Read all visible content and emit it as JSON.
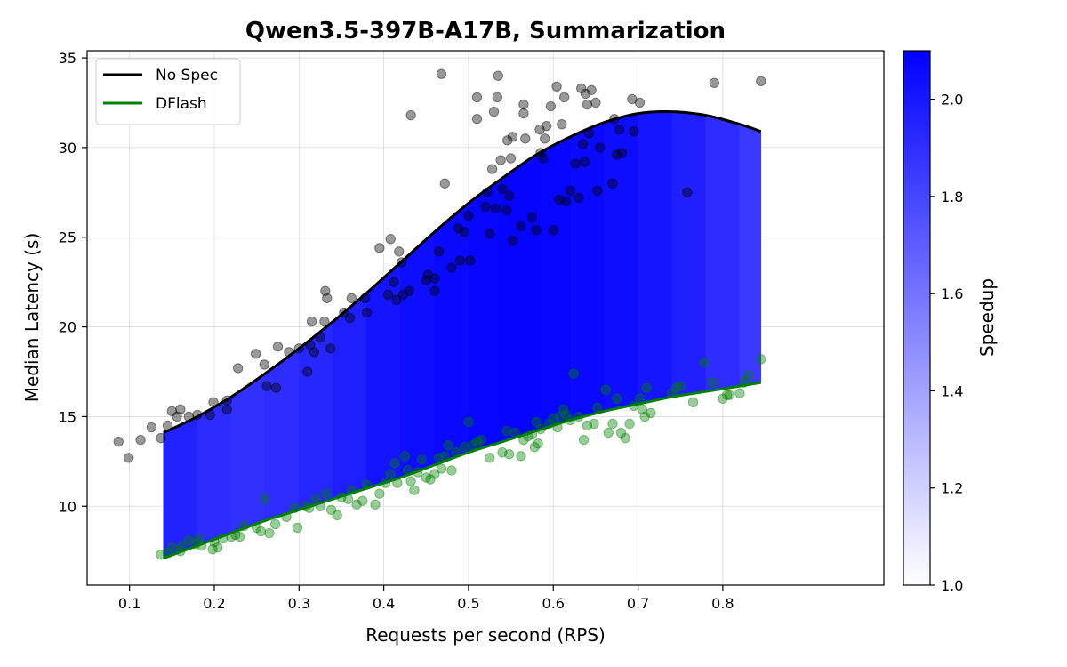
{
  "chart_data": {
    "type": "scatter",
    "title": "Qwen3.5-397B-A17B, Summarization",
    "xlabel": "Requests per second (RPS)",
    "ylabel": "Median Latency (s)",
    "xlim": [
      0.05,
      0.99
    ],
    "ylim": [
      5.6,
      35.4
    ],
    "xticks": [
      0.1,
      0.2,
      0.3,
      0.4,
      0.5,
      0.6,
      0.7,
      0.8
    ],
    "xtick_labels": [
      "0.1",
      "0.2",
      "0.3",
      "0.4",
      "0.5",
      "0.6",
      "0.7",
      "0.8"
    ],
    "yticks": [
      10,
      15,
      20,
      25,
      30,
      35
    ],
    "ytick_labels": [
      "10",
      "15",
      "20",
      "25",
      "30",
      "35"
    ],
    "grid": true,
    "legend_position": "top-left",
    "fill_color": "#0000ff",
    "colorbar": {
      "label": "Speedup",
      "range": [
        1.0,
        2.1
      ],
      "ticks": [
        1.0,
        1.2,
        1.4,
        1.6,
        1.8,
        2.0
      ],
      "tick_labels": [
        "1.0",
        "1.2",
        "1.4",
        "1.6",
        "1.8",
        "2.0"
      ],
      "color_min": "#ffffff",
      "color_max": "#0000ff"
    },
    "series": [
      {
        "name": "No Spec",
        "kind": "fit_line",
        "color": "#000000",
        "x": [
          0.14,
          0.18,
          0.22,
          0.26,
          0.3,
          0.34,
          0.38,
          0.42,
          0.46,
          0.5,
          0.54,
          0.58,
          0.62,
          0.66,
          0.7,
          0.74,
          0.78,
          0.82,
          0.845
        ],
        "y": [
          14.1,
          15.0,
          16.1,
          17.4,
          18.8,
          20.3,
          21.9,
          23.6,
          25.3,
          26.9,
          28.3,
          29.6,
          30.6,
          31.4,
          31.9,
          32.0,
          31.8,
          31.3,
          30.9
        ]
      },
      {
        "name": "DFlash",
        "kind": "fit_line",
        "color": "#008000",
        "x": [
          0.14,
          0.18,
          0.22,
          0.26,
          0.3,
          0.34,
          0.38,
          0.42,
          0.46,
          0.5,
          0.54,
          0.58,
          0.62,
          0.66,
          0.7,
          0.74,
          0.78,
          0.82,
          0.845
        ],
        "y": [
          7.1,
          7.8,
          8.5,
          9.2,
          9.8,
          10.4,
          11.0,
          11.6,
          12.3,
          13.0,
          13.6,
          14.2,
          14.8,
          15.3,
          15.7,
          16.1,
          16.4,
          16.7,
          16.9
        ]
      },
      {
        "kind": "scatter",
        "color": "#000000",
        "opacity": 0.4,
        "points": [
          [
            0.087,
            13.6
          ],
          [
            0.099,
            12.7
          ],
          [
            0.113,
            13.7
          ],
          [
            0.126,
            14.4
          ],
          [
            0.137,
            13.8
          ],
          [
            0.145,
            14.5
          ],
          [
            0.15,
            15.3
          ],
          [
            0.156,
            15.0
          ],
          [
            0.16,
            15.4
          ],
          [
            0.17,
            15.0
          ],
          [
            0.18,
            15.1
          ],
          [
            0.195,
            15.1
          ],
          [
            0.199,
            15.8
          ],
          [
            0.215,
            15.9
          ],
          [
            0.215,
            15.4
          ],
          [
            0.228,
            17.7
          ],
          [
            0.249,
            18.5
          ],
          [
            0.259,
            17.9
          ],
          [
            0.262,
            16.7
          ],
          [
            0.273,
            16.6
          ],
          [
            0.275,
            18.9
          ],
          [
            0.288,
            18.6
          ],
          [
            0.3,
            18.8
          ],
          [
            0.31,
            17.5
          ],
          [
            0.313,
            19.0
          ],
          [
            0.315,
            20.3
          ],
          [
            0.318,
            18.6
          ],
          [
            0.325,
            19.4
          ],
          [
            0.33,
            20.3
          ],
          [
            0.331,
            22.0
          ],
          [
            0.333,
            21.6
          ],
          [
            0.337,
            18.8
          ],
          [
            0.353,
            20.8
          ],
          [
            0.36,
            20.5
          ],
          [
            0.362,
            21.6
          ],
          [
            0.378,
            21.6
          ],
          [
            0.38,
            20.8
          ],
          [
            0.395,
            24.4
          ],
          [
            0.405,
            21.8
          ],
          [
            0.408,
            24.9
          ],
          [
            0.412,
            22.5
          ],
          [
            0.415,
            21.5
          ],
          [
            0.418,
            24.2
          ],
          [
            0.421,
            23.6
          ],
          [
            0.423,
            21.8
          ],
          [
            0.43,
            22.0
          ],
          [
            0.432,
            31.8
          ],
          [
            0.45,
            22.6
          ],
          [
            0.452,
            22.9
          ],
          [
            0.46,
            22.0
          ],
          [
            0.46,
            22.7
          ],
          [
            0.465,
            24.2
          ],
          [
            0.468,
            34.1
          ],
          [
            0.472,
            28.0
          ],
          [
            0.48,
            23.3
          ],
          [
            0.488,
            25.5
          ],
          [
            0.49,
            23.7
          ],
          [
            0.495,
            25.3
          ],
          [
            0.5,
            26.2
          ],
          [
            0.502,
            23.7
          ],
          [
            0.51,
            32.8
          ],
          [
            0.51,
            31.6
          ],
          [
            0.52,
            26.7
          ],
          [
            0.522,
            27.5
          ],
          [
            0.525,
            25.2
          ],
          [
            0.528,
            28.8
          ],
          [
            0.53,
            32.0
          ],
          [
            0.532,
            26.6
          ],
          [
            0.534,
            32.8
          ],
          [
            0.535,
            34.0
          ],
          [
            0.538,
            29.3
          ],
          [
            0.54,
            27.7
          ],
          [
            0.545,
            26.5
          ],
          [
            0.546,
            30.4
          ],
          [
            0.548,
            27.3
          ],
          [
            0.55,
            29.4
          ],
          [
            0.552,
            30.6
          ],
          [
            0.552,
            24.8
          ],
          [
            0.562,
            25.6
          ],
          [
            0.565,
            32.4
          ],
          [
            0.565,
            31.9
          ],
          [
            0.567,
            30.5
          ],
          [
            0.575,
            26.1
          ],
          [
            0.58,
            25.4
          ],
          [
            0.584,
            31.0
          ],
          [
            0.585,
            29.7
          ],
          [
            0.588,
            29.4
          ],
          [
            0.59,
            30.5
          ],
          [
            0.592,
            31.2
          ],
          [
            0.597,
            32.3
          ],
          [
            0.6,
            25.4
          ],
          [
            0.604,
            33.4
          ],
          [
            0.607,
            27.1
          ],
          [
            0.61,
            31.3
          ],
          [
            0.613,
            32.8
          ],
          [
            0.615,
            27.0
          ],
          [
            0.62,
            27.6
          ],
          [
            0.626,
            29.1
          ],
          [
            0.63,
            27.2
          ],
          [
            0.633,
            33.3
          ],
          [
            0.635,
            30.2
          ],
          [
            0.637,
            29.2
          ],
          [
            0.638,
            33.0
          ],
          [
            0.64,
            32.4
          ],
          [
            0.642,
            30.8
          ],
          [
            0.645,
            33.2
          ],
          [
            0.65,
            32.5
          ],
          [
            0.652,
            27.6
          ],
          [
            0.655,
            30.0
          ],
          [
            0.67,
            28.0
          ],
          [
            0.672,
            31.6
          ],
          [
            0.675,
            29.6
          ],
          [
            0.678,
            31.0
          ],
          [
            0.681,
            29.7
          ],
          [
            0.693,
            32.7
          ],
          [
            0.695,
            30.9
          ],
          [
            0.702,
            32.5
          ],
          [
            0.758,
            27.5
          ],
          [
            0.79,
            33.6
          ],
          [
            0.845,
            33.7
          ]
        ]
      },
      {
        "kind": "scatter",
        "color": "#008000",
        "opacity": 0.4,
        "points": [
          [
            0.137,
            7.3
          ],
          [
            0.145,
            7.4
          ],
          [
            0.15,
            7.7
          ],
          [
            0.16,
            7.5
          ],
          [
            0.162,
            7.8
          ],
          [
            0.17,
            8.1
          ],
          [
            0.178,
            7.9
          ],
          [
            0.182,
            8.2
          ],
          [
            0.185,
            7.8
          ],
          [
            0.198,
            7.6
          ],
          [
            0.2,
            8.0
          ],
          [
            0.204,
            7.7
          ],
          [
            0.21,
            8.2
          ],
          [
            0.22,
            8.3
          ],
          [
            0.225,
            8.4
          ],
          [
            0.23,
            8.3
          ],
          [
            0.235,
            8.9
          ],
          [
            0.25,
            8.8
          ],
          [
            0.255,
            8.6
          ],
          [
            0.26,
            10.4
          ],
          [
            0.265,
            8.5
          ],
          [
            0.272,
            9.0
          ],
          [
            0.285,
            9.4
          ],
          [
            0.295,
            9.9
          ],
          [
            0.298,
            8.8
          ],
          [
            0.308,
            10.0
          ],
          [
            0.312,
            9.9
          ],
          [
            0.32,
            10.4
          ],
          [
            0.325,
            10.0
          ],
          [
            0.332,
            10.7
          ],
          [
            0.338,
            9.8
          ],
          [
            0.345,
            9.5
          ],
          [
            0.35,
            10.5
          ],
          [
            0.358,
            10.4
          ],
          [
            0.362,
            10.9
          ],
          [
            0.368,
            10.1
          ],
          [
            0.375,
            10.3
          ],
          [
            0.38,
            11.2
          ],
          [
            0.39,
            10.1
          ],
          [
            0.395,
            10.7
          ],
          [
            0.402,
            11.3
          ],
          [
            0.408,
            11.8
          ],
          [
            0.413,
            12.4
          ],
          [
            0.416,
            11.3
          ],
          [
            0.425,
            12.8
          ],
          [
            0.428,
            12.0
          ],
          [
            0.432,
            11.4
          ],
          [
            0.436,
            10.9
          ],
          [
            0.44,
            11.9
          ],
          [
            0.445,
            12.6
          ],
          [
            0.45,
            11.6
          ],
          [
            0.455,
            11.5
          ],
          [
            0.46,
            11.8
          ],
          [
            0.465,
            12.7
          ],
          [
            0.468,
            12.1
          ],
          [
            0.472,
            12.8
          ],
          [
            0.476,
            13.4
          ],
          [
            0.48,
            12.0
          ],
          [
            0.485,
            13.0
          ],
          [
            0.495,
            13.3
          ],
          [
            0.5,
            14.7
          ],
          [
            0.505,
            13.4
          ],
          [
            0.51,
            13.6
          ],
          [
            0.515,
            13.7
          ],
          [
            0.525,
            12.7
          ],
          [
            0.54,
            13.0
          ],
          [
            0.545,
            14.2
          ],
          [
            0.548,
            12.9
          ],
          [
            0.555,
            14.1
          ],
          [
            0.562,
            12.8
          ],
          [
            0.565,
            13.7
          ],
          [
            0.57,
            13.9
          ],
          [
            0.575,
            14.0
          ],
          [
            0.578,
            13.3
          ],
          [
            0.58,
            14.7
          ],
          [
            0.582,
            13.5
          ],
          [
            0.585,
            14.3
          ],
          [
            0.595,
            14.6
          ],
          [
            0.6,
            14.9
          ],
          [
            0.605,
            14.4
          ],
          [
            0.608,
            15.0
          ],
          [
            0.612,
            15.4
          ],
          [
            0.615,
            15.1
          ],
          [
            0.62,
            14.8
          ],
          [
            0.624,
            17.4
          ],
          [
            0.63,
            15.0
          ],
          [
            0.636,
            13.7
          ],
          [
            0.64,
            14.5
          ],
          [
            0.648,
            14.6
          ],
          [
            0.652,
            15.5
          ],
          [
            0.662,
            16.5
          ],
          [
            0.665,
            14.1
          ],
          [
            0.67,
            14.6
          ],
          [
            0.675,
            16.0
          ],
          [
            0.68,
            14.1
          ],
          [
            0.685,
            13.8
          ],
          [
            0.69,
            14.6
          ],
          [
            0.695,
            15.6
          ],
          [
            0.702,
            16.0
          ],
          [
            0.705,
            15.4
          ],
          [
            0.708,
            15.0
          ],
          [
            0.71,
            16.6
          ],
          [
            0.715,
            15.2
          ],
          [
            0.74,
            16.3
          ],
          [
            0.745,
            16.6
          ],
          [
            0.75,
            16.7
          ],
          [
            0.765,
            15.8
          ],
          [
            0.778,
            18.0
          ],
          [
            0.788,
            16.9
          ],
          [
            0.8,
            16.0
          ],
          [
            0.805,
            16.2
          ],
          [
            0.808,
            16.2
          ],
          [
            0.82,
            16.3
          ],
          [
            0.825,
            16.9
          ],
          [
            0.83,
            17.3
          ],
          [
            0.845,
            18.2
          ]
        ]
      }
    ]
  }
}
